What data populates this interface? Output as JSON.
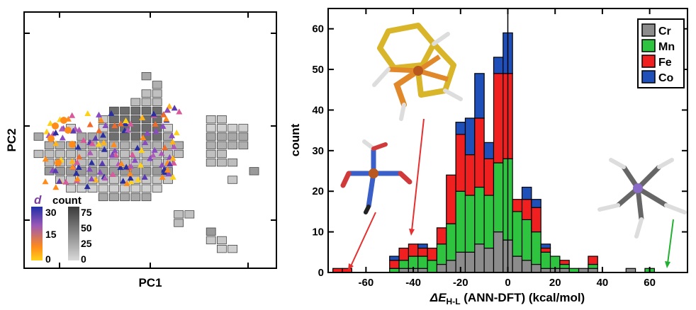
{
  "chart_data": [
    {
      "type": "scatter",
      "xlabel": "PC1",
      "ylabel": "PC2",
      "colorbar_d": {
        "label": "d",
        "ticks": [
          "30",
          "15",
          "0"
        ],
        "colors": [
          "#1f2fa8",
          "#9b59b6",
          "#ff8c1a",
          "#ffd21a"
        ]
      },
      "colorbar_count": {
        "label": "count",
        "ticks": [
          "75",
          "50",
          "25",
          "0"
        ],
        "colors": [
          "#3a3a3a",
          "#d9d9d9"
        ]
      },
      "grid_cells": [
        [
          10,
          2
        ],
        [
          11,
          3
        ],
        [
          10,
          4
        ],
        [
          11,
          4
        ],
        [
          9,
          5
        ],
        [
          10,
          5
        ],
        [
          11,
          5
        ],
        [
          7,
          6
        ],
        [
          8,
          6
        ],
        [
          9,
          6
        ],
        [
          10,
          6
        ],
        [
          11,
          6
        ],
        [
          6,
          7
        ],
        [
          7,
          7
        ],
        [
          8,
          7
        ],
        [
          9,
          7
        ],
        [
          10,
          7
        ],
        [
          11,
          7
        ],
        [
          16,
          7
        ],
        [
          17,
          7
        ],
        [
          3,
          8
        ],
        [
          6,
          8
        ],
        [
          7,
          8
        ],
        [
          8,
          8
        ],
        [
          9,
          8
        ],
        [
          10,
          8
        ],
        [
          11,
          8
        ],
        [
          12,
          8
        ],
        [
          16,
          8
        ],
        [
          17,
          8
        ],
        [
          18,
          8
        ],
        [
          19,
          8
        ],
        [
          0,
          9
        ],
        [
          4,
          9
        ],
        [
          5,
          9
        ],
        [
          6,
          9
        ],
        [
          7,
          9
        ],
        [
          8,
          9
        ],
        [
          9,
          9
        ],
        [
          10,
          9
        ],
        [
          11,
          9
        ],
        [
          12,
          9
        ],
        [
          16,
          9
        ],
        [
          17,
          9
        ],
        [
          18,
          9
        ],
        [
          19,
          9
        ],
        [
          1,
          10
        ],
        [
          2,
          10
        ],
        [
          3,
          10
        ],
        [
          4,
          10
        ],
        [
          5,
          10
        ],
        [
          6,
          10
        ],
        [
          7,
          10
        ],
        [
          8,
          10
        ],
        [
          9,
          10
        ],
        [
          10,
          10
        ],
        [
          11,
          10
        ],
        [
          12,
          10
        ],
        [
          13,
          10
        ],
        [
          16,
          10
        ],
        [
          17,
          10
        ],
        [
          18,
          10
        ],
        [
          19,
          10
        ],
        [
          0,
          11
        ],
        [
          1,
          11
        ],
        [
          2,
          11
        ],
        [
          3,
          11
        ],
        [
          4,
          11
        ],
        [
          5,
          11
        ],
        [
          6,
          11
        ],
        [
          7,
          11
        ],
        [
          8,
          11
        ],
        [
          9,
          11
        ],
        [
          10,
          11
        ],
        [
          11,
          11
        ],
        [
          12,
          11
        ],
        [
          13,
          11
        ],
        [
          16,
          11
        ],
        [
          17,
          11
        ],
        [
          1,
          12
        ],
        [
          2,
          12
        ],
        [
          3,
          12
        ],
        [
          4,
          12
        ],
        [
          5,
          12
        ],
        [
          6,
          12
        ],
        [
          7,
          12
        ],
        [
          8,
          12
        ],
        [
          9,
          12
        ],
        [
          10,
          12
        ],
        [
          11,
          12
        ],
        [
          12,
          12
        ],
        [
          16,
          12
        ],
        [
          17,
          12
        ],
        [
          18,
          12
        ],
        [
          1,
          13
        ],
        [
          2,
          13
        ],
        [
          3,
          13
        ],
        [
          4,
          13
        ],
        [
          5,
          13
        ],
        [
          6,
          13
        ],
        [
          7,
          13
        ],
        [
          8,
          13
        ],
        [
          9,
          13
        ],
        [
          10,
          13
        ],
        [
          11,
          13
        ],
        [
          12,
          13
        ],
        [
          20,
          13
        ],
        [
          2,
          14
        ],
        [
          3,
          14
        ],
        [
          4,
          14
        ],
        [
          5,
          14
        ],
        [
          6,
          14
        ],
        [
          7,
          14
        ],
        [
          8,
          14
        ],
        [
          9,
          14
        ],
        [
          10,
          14
        ],
        [
          11,
          14
        ],
        [
          12,
          14
        ],
        [
          18,
          14
        ],
        [
          3,
          15
        ],
        [
          4,
          15
        ],
        [
          5,
          15
        ],
        [
          6,
          15
        ],
        [
          7,
          15
        ],
        [
          8,
          15
        ],
        [
          9,
          15
        ],
        [
          10,
          15
        ],
        [
          11,
          15
        ],
        [
          6,
          16
        ],
        [
          7,
          16
        ],
        [
          8,
          16
        ],
        [
          9,
          16
        ],
        [
          10,
          16
        ],
        [
          13,
          18
        ],
        [
          14,
          18
        ],
        [
          13,
          19
        ],
        [
          16,
          20
        ],
        [
          16,
          21
        ],
        [
          17,
          21
        ],
        [
          17,
          22
        ],
        [
          18,
          22
        ]
      ]
    },
    {
      "type": "bar",
      "stacked": true,
      "xlabel": "ΔE",
      "xlabel_sub": "H-L",
      "xlabel_rest": " (ANN-DFT) (kcal/mol)",
      "ylabel": "count",
      "x_ticks": [
        -60,
        -40,
        -20,
        0,
        20,
        40,
        60
      ],
      "y_ticks": [
        0,
        10,
        20,
        30,
        40,
        50,
        60
      ],
      "xlim": [
        -76,
        76
      ],
      "ylim": [
        0,
        65
      ],
      "bin_width": 4,
      "bin_starts": [
        -74,
        -70,
        -66,
        -62,
        -58,
        -54,
        -50,
        -46,
        -42,
        -38,
        -34,
        -30,
        -26,
        -22,
        -18,
        -14,
        -10,
        -6,
        -2,
        2,
        6,
        10,
        14,
        18,
        22,
        26,
        30,
        34,
        38,
        42,
        46,
        50,
        54,
        58,
        62,
        66,
        70
      ],
      "legend_position": "top-right",
      "series": [
        {
          "name": "Cr",
          "color": "#8c8c8c",
          "values": [
            0,
            0,
            0,
            0,
            0,
            0,
            0,
            1,
            1,
            1,
            0,
            2,
            3,
            5,
            5,
            7,
            6,
            10,
            8,
            4,
            3,
            2,
            1,
            1,
            1,
            0,
            1,
            1,
            0,
            0,
            0,
            1,
            0,
            0,
            0,
            0,
            0
          ]
        },
        {
          "name": "Mn",
          "color": "#2ec440",
          "values": [
            0,
            0,
            0,
            0,
            0,
            0,
            1,
            2,
            3,
            3,
            3,
            5,
            9,
            15,
            14,
            14,
            13,
            17,
            20,
            11,
            10,
            8,
            4,
            3,
            1,
            1,
            0,
            1,
            0,
            0,
            0,
            0,
            0,
            1,
            0,
            0,
            0
          ]
        },
        {
          "name": "Fe",
          "color": "#f02020",
          "values": [
            1,
            1,
            0,
            0,
            0,
            0,
            2,
            3,
            3,
            2,
            3,
            4,
            12,
            14,
            10,
            17,
            9,
            22,
            21,
            3,
            5,
            6,
            1,
            0,
            1,
            0,
            0,
            2,
            0,
            0,
            0,
            0,
            0,
            0,
            0,
            0,
            0
          ]
        },
        {
          "name": "Co",
          "color": "#1f4fb8",
          "values": [
            0,
            0,
            0,
            0,
            0,
            0,
            1,
            0,
            0,
            1,
            0,
            0,
            0,
            3,
            9,
            11,
            4,
            4,
            10,
            0,
            3,
            2,
            1,
            0,
            0,
            0,
            0,
            0,
            0,
            0,
            0,
            0,
            0,
            0,
            0,
            0,
            0
          ]
        }
      ]
    }
  ]
}
